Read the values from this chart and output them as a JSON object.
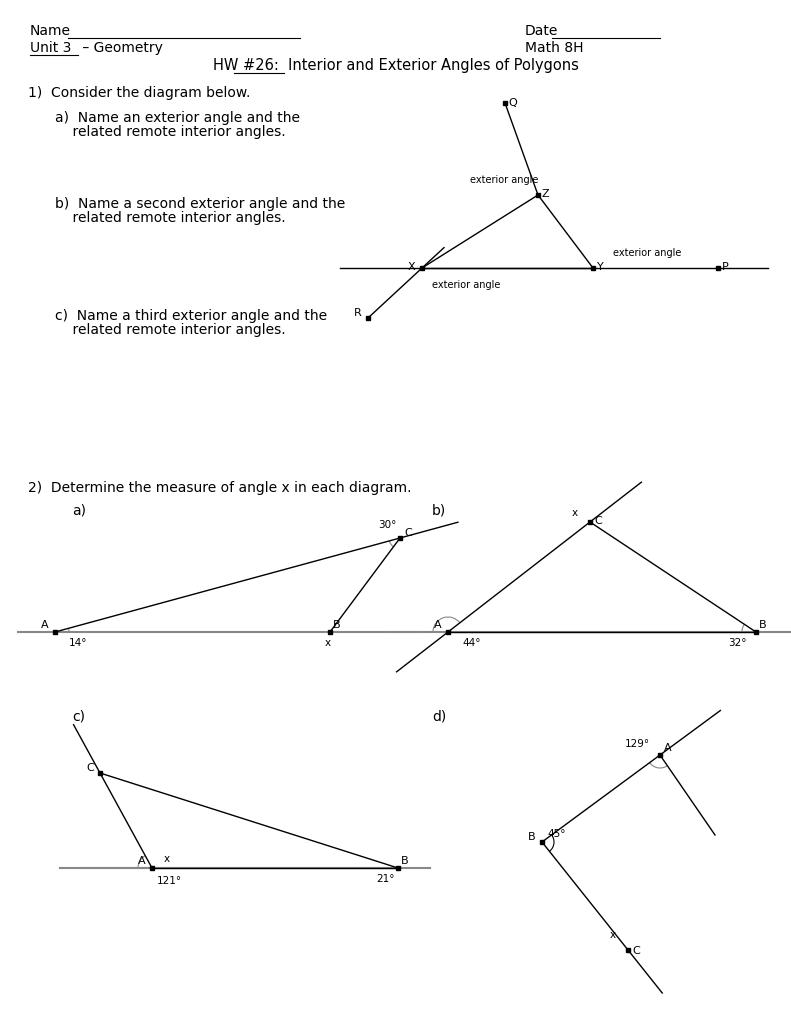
{
  "bg_color": "#ffffff",
  "font_color": "#000000",
  "title": "HW #26:  Interior and Exterior Angles of Polygons",
  "q1_text": "1)  Consider the diagram below.",
  "q1a": "a)  Name an exterior angle and the",
  "q1a2": "    related remote interior angles.",
  "q1b": "b)  Name a second exterior angle and the",
  "q1b2": "    related remote interior angles.",
  "q1c": "c)  Name a third exterior angle and the",
  "q1c2": "    related remote interior angles.",
  "q2_text": "2)  Determine the measure of angle x in each diagram."
}
